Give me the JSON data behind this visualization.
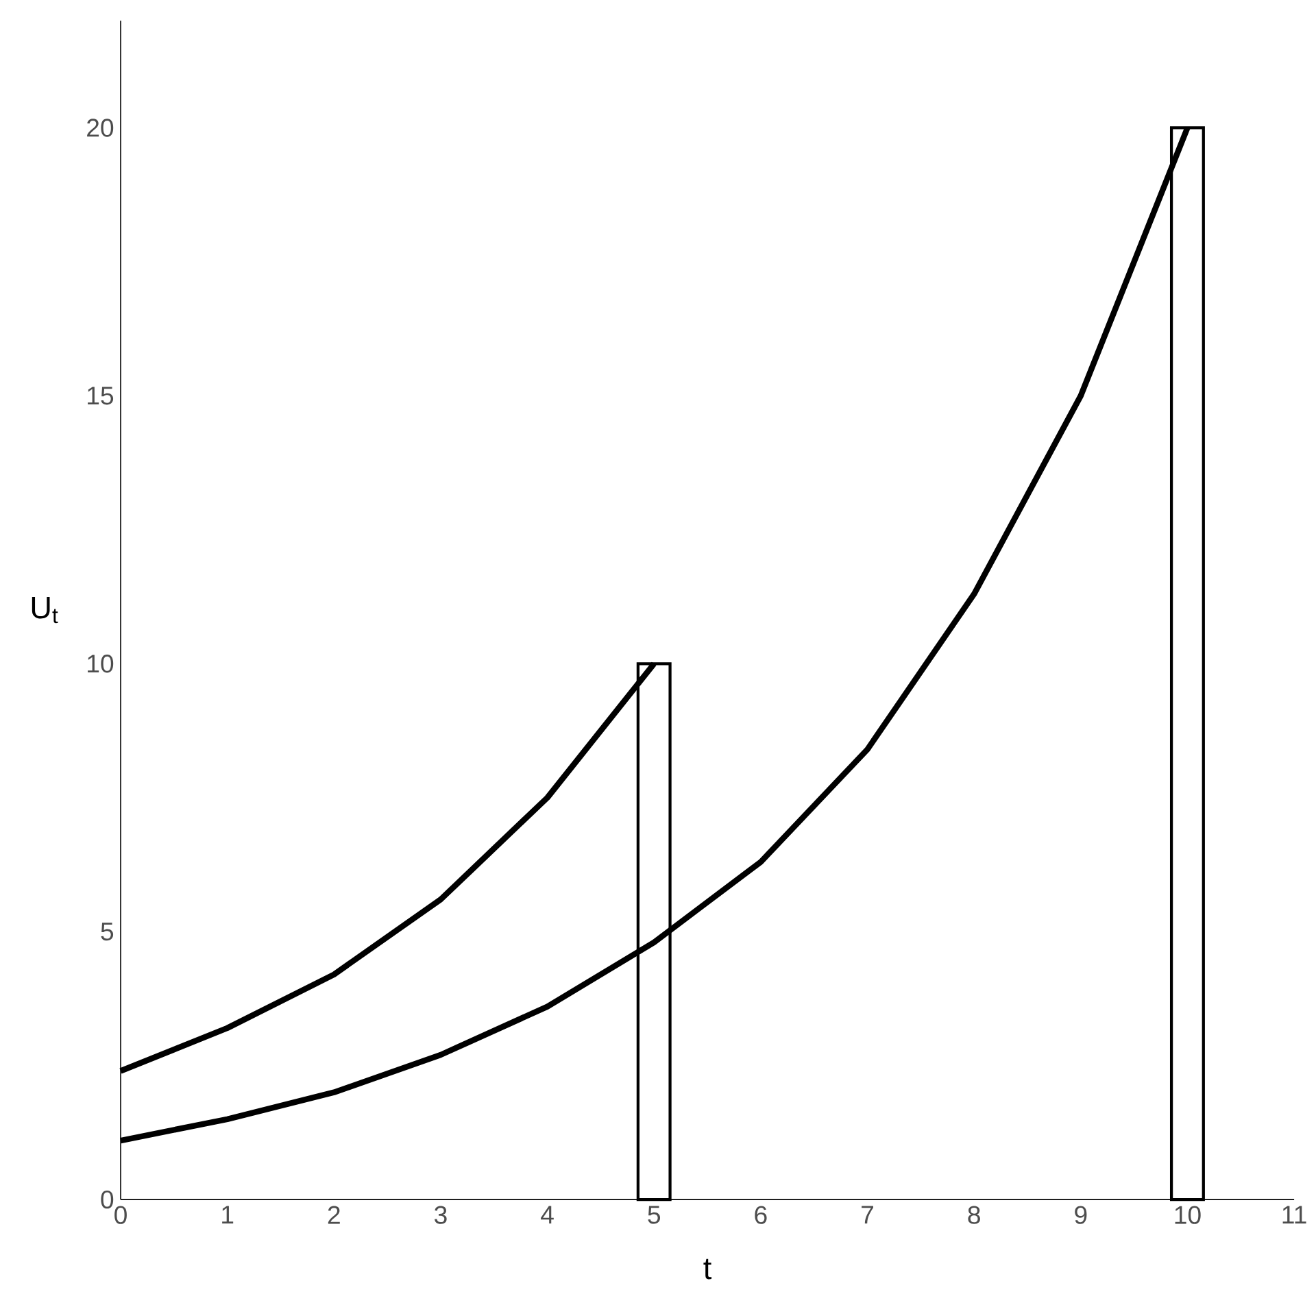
{
  "chart_data": {
    "type": "line",
    "xlabel": "t",
    "ylabel": "U$_{t}$",
    "xlim": [
      0,
      11
    ],
    "ylim": [
      0,
      22
    ],
    "xticks": [
      0,
      1,
      2,
      3,
      4,
      5,
      6,
      7,
      8,
      9,
      10,
      11
    ],
    "yticks": [
      0,
      5,
      10,
      15,
      20
    ],
    "grid": false,
    "series": [
      {
        "type": "bar",
        "color": "#ffffff",
        "x": [
          5,
          10
        ],
        "values": [
          10,
          20
        ]
      },
      {
        "color": "#000000",
        "x": [
          0,
          1,
          2,
          3,
          4,
          5
        ],
        "values": [
          2.4,
          3.2,
          4.2,
          5.6,
          7.5,
          10
        ]
      },
      {
        "color": "#000000",
        "x": [
          0,
          1,
          2,
          3,
          4,
          5,
          6,
          7,
          8,
          9,
          10
        ],
        "values": [
          1.1,
          1.5,
          2.0,
          2.7,
          3.6,
          4.8,
          6.3,
          8.4,
          11.3,
          15,
          20
        ]
      }
    ]
  }
}
